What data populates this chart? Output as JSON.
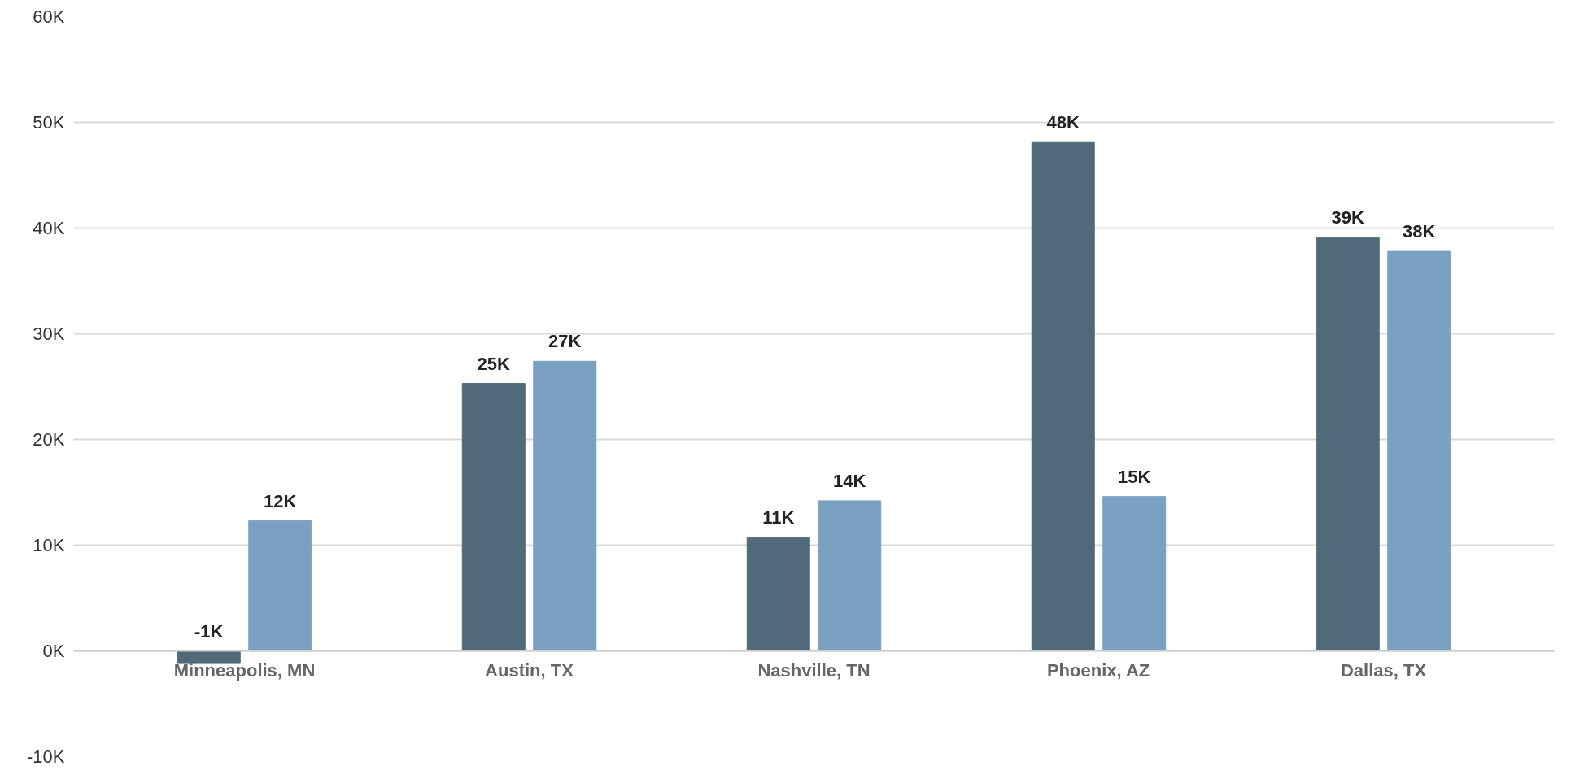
{
  "chart_data": {
    "type": "bar",
    "categories": [
      "Minneapolis, MN",
      "Austin, TX",
      "Nashville, TN",
      "Phoenix, AZ",
      "Dallas, TX"
    ],
    "series": [
      {
        "color": "#516a79",
        "values": [
          -1200,
          25300,
          10700,
          48100,
          39100
        ],
        "value_labels": [
          "-1K",
          "25K",
          "11K",
          "48K",
          "39K"
        ]
      },
      {
        "color": "#7ba1c2",
        "values": [
          12300,
          27400,
          14200,
          14600,
          37800
        ],
        "value_labels": [
          "12K",
          "27K",
          "14K",
          "15K",
          "38K"
        ]
      }
    ],
    "ylim": [
      -10000,
      60000
    ],
    "yticks": [
      {
        "value": -10000,
        "label": "-10K"
      },
      {
        "value": 0,
        "label": "0K"
      },
      {
        "value": 10000,
        "label": "10K"
      },
      {
        "value": 20000,
        "label": "20K"
      },
      {
        "value": 30000,
        "label": "30K"
      },
      {
        "value": 40000,
        "label": "40K"
      },
      {
        "value": 50000,
        "label": "50K"
      },
      {
        "value": 60000,
        "label": "60K"
      }
    ],
    "grid": "y"
  }
}
